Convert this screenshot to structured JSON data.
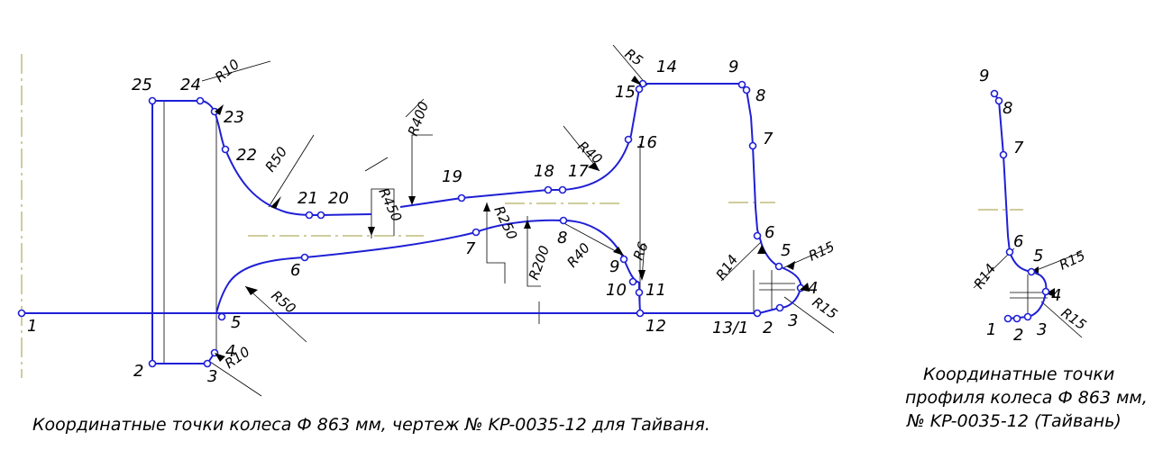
{
  "wheel": {
    "points": [
      "1",
      "2",
      "3",
      "4",
      "5",
      "6",
      "7",
      "8",
      "9",
      "10",
      "11",
      "12",
      "13/1",
      "2",
      "3",
      "4",
      "5",
      "6",
      "7",
      "8",
      "9",
      "14",
      "15",
      "16",
      "17",
      "18",
      "19",
      "20",
      "21",
      "22",
      "23",
      "24",
      "25"
    ],
    "radii": [
      "R10",
      "R50",
      "R450",
      "R400",
      "R250",
      "R200",
      "R40",
      "R40",
      "R5",
      "R6",
      "R50",
      "R10",
      "R14",
      "R15",
      "R15"
    ]
  },
  "profile": {
    "points": [
      "9",
      "8",
      "7",
      "6",
      "5",
      "4",
      "3",
      "2",
      "1"
    ],
    "radii": [
      "R14",
      "R15",
      "R15"
    ]
  },
  "captions": {
    "main": "Координатные точки колеса Ф 863 мм, чертеж № KP-0035-12 для Тайваня.",
    "side_line1": "Координатные точки",
    "side_line2": "профиля колеса Ф 863 мм,",
    "side_line3": "№ KP-0035-12 (Тайвань)"
  },
  "colors": {
    "profile": "#1f1fd6",
    "axis": "#a09a3a",
    "text": "#000000"
  }
}
